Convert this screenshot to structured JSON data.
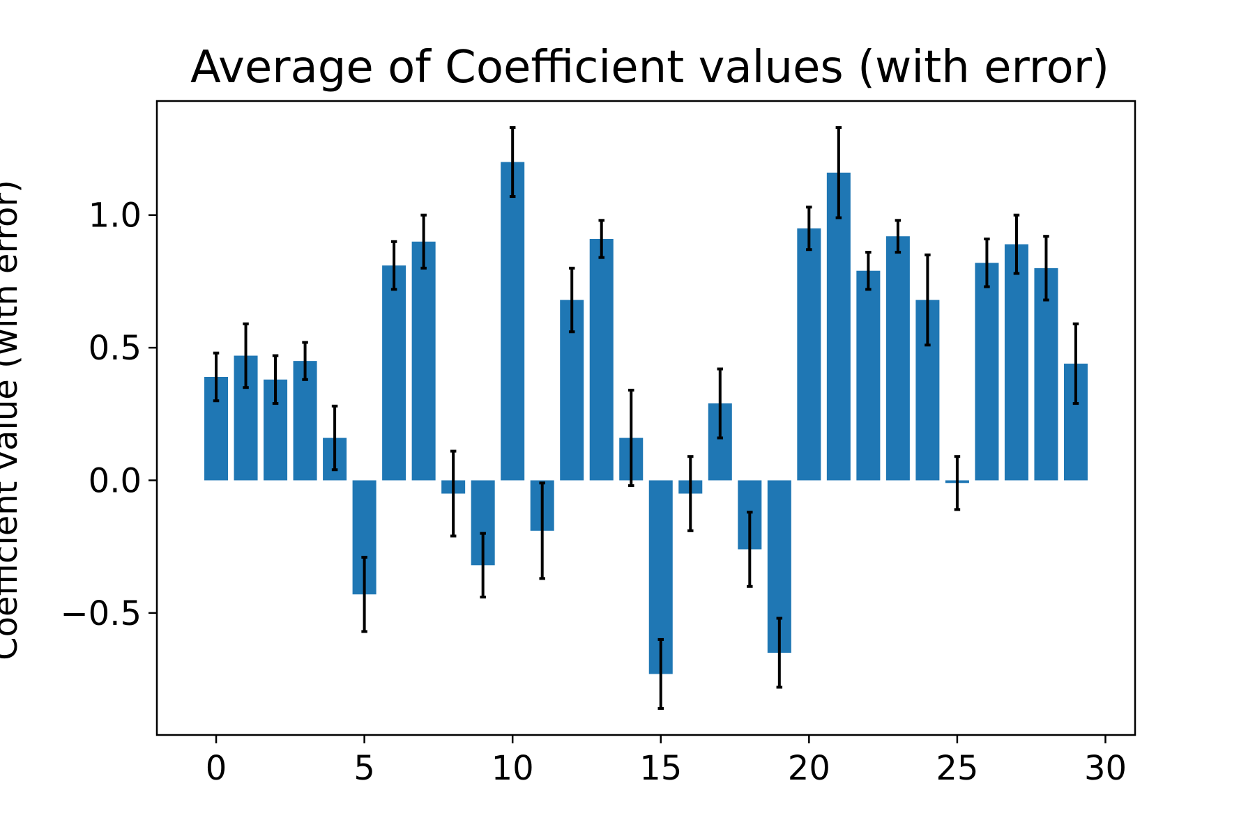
{
  "chart_data": {
    "type": "bar",
    "title": "Average of Coefficient values (with error)",
    "xlabel": "",
    "ylabel": "Coefficient value (with error)",
    "xlim": [
      -2,
      31
    ],
    "ylim": [
      -0.96,
      1.43
    ],
    "x_ticks": [
      0,
      5,
      10,
      15,
      20,
      25,
      30
    ],
    "y_ticks": [
      -0.5,
      0.0,
      0.5,
      1.0
    ],
    "x_tick_labels": [
      "0",
      "5",
      "10",
      "15",
      "20",
      "25",
      "30"
    ],
    "y_tick_labels": [
      "−0.5",
      "0.0",
      "0.5",
      "1.0"
    ],
    "grid": false,
    "bar_color": "#1f77b4",
    "error_color": "#000000",
    "x": [
      0,
      1,
      2,
      3,
      4,
      5,
      6,
      7,
      8,
      9,
      10,
      11,
      12,
      13,
      14,
      15,
      16,
      17,
      18,
      19,
      20,
      21,
      22,
      23,
      24,
      25,
      26,
      27,
      28,
      29
    ],
    "values": [
      0.39,
      0.47,
      0.38,
      0.45,
      0.16,
      -0.43,
      0.81,
      0.9,
      -0.05,
      -0.32,
      1.2,
      -0.19,
      0.68,
      0.91,
      0.16,
      -0.73,
      -0.05,
      0.29,
      -0.26,
      -0.65,
      0.95,
      1.16,
      0.79,
      0.92,
      0.68,
      -0.01,
      0.82,
      0.89,
      0.8,
      0.44
    ],
    "errors": [
      0.09,
      0.12,
      0.09,
      0.07,
      0.12,
      0.14,
      0.09,
      0.1,
      0.16,
      0.12,
      0.13,
      0.18,
      0.12,
      0.07,
      0.18,
      0.13,
      0.14,
      0.13,
      0.14,
      0.13,
      0.08,
      0.17,
      0.07,
      0.06,
      0.17,
      0.1,
      0.09,
      0.11,
      0.12,
      0.15
    ]
  }
}
